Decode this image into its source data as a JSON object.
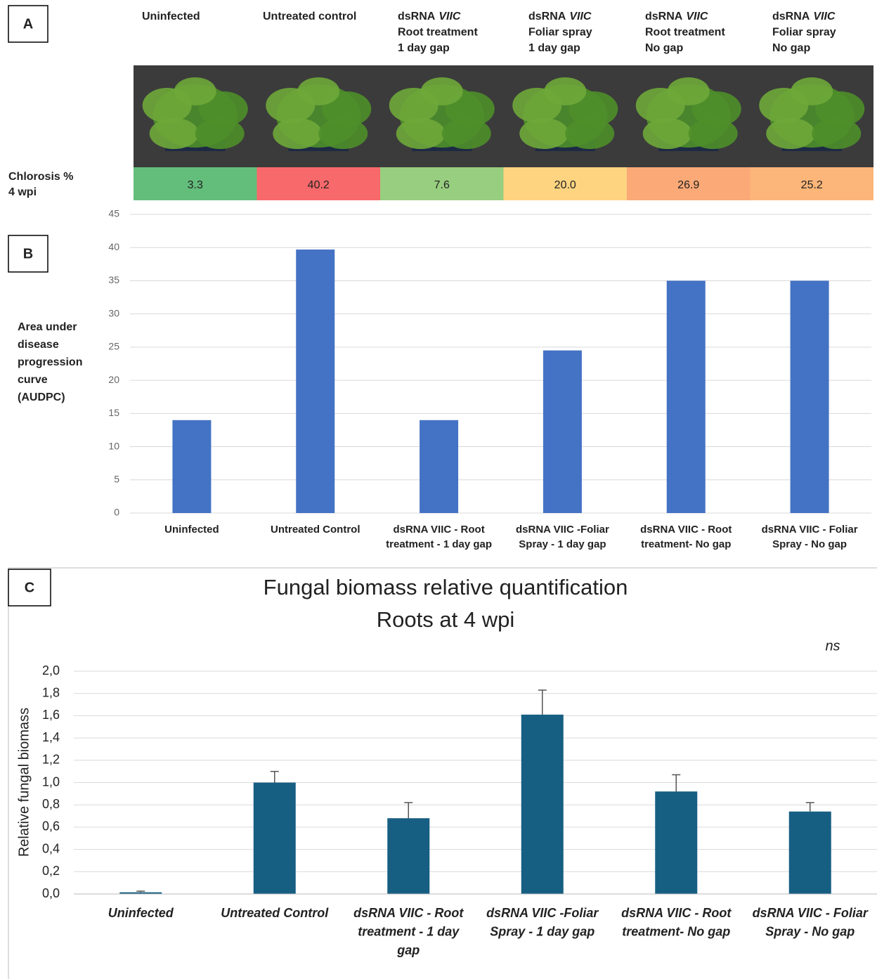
{
  "panel_a": {
    "label": "A",
    "columns": [
      {
        "lines": [
          [
            "Uninfected"
          ]
        ]
      },
      {
        "lines": [
          [
            "Untreated control"
          ]
        ]
      },
      {
        "lines": [
          [
            "dsRNA",
            {
              "italic": "VIIC"
            }
          ],
          [
            "Root treatment"
          ],
          [
            "1 day gap"
          ]
        ]
      },
      {
        "lines": [
          [
            "dsRNA",
            {
              "italic": "VIIC"
            }
          ],
          [
            "Foliar spray"
          ],
          [
            "1 day gap"
          ]
        ]
      },
      {
        "lines": [
          [
            "dsRNA",
            {
              "italic": "VIIC"
            }
          ],
          [
            "Root treatment"
          ],
          [
            "No gap"
          ]
        ]
      },
      {
        "lines": [
          [
            "dsRNA",
            {
              "italic": "VIIC"
            }
          ],
          [
            "Foliar spray"
          ],
          [
            "No gap"
          ]
        ]
      }
    ],
    "row_label": [
      "Chlorosis %",
      "4 wpi"
    ],
    "values": [
      3.3,
      40.2,
      7.6,
      20.0,
      26.9,
      25.2
    ],
    "value_labels": [
      "3.3",
      "40.2",
      "7.6",
      "20.0",
      "26.9",
      "25.2"
    ],
    "colors": [
      "#63be7b",
      "#f8696b",
      "#98ce7f",
      "#fed480",
      "#fba977",
      "#fcb679"
    ]
  },
  "chart_data": [
    {
      "type": "bar",
      "panel_label": "B",
      "y_label": [
        "Area under",
        "disease",
        "progression",
        "curve",
        "(AUDPC)"
      ],
      "categories": [
        [
          "Uninfected"
        ],
        [
          "Untreated Control"
        ],
        [
          "dsRNA VIIC - Root",
          "treatment - 1 day gap"
        ],
        [
          "dsRNA VIIC -Foliar",
          "Spray - 1 day gap"
        ],
        [
          "dsRNA VIIC - Root",
          "treatment- No gap"
        ],
        [
          "dsRNA VIIC - Foliar",
          "Spray - No gap"
        ]
      ],
      "values": [
        14,
        39.7,
        14,
        24.5,
        35,
        35
      ],
      "color": "#4472c4",
      "ylim": [
        0,
        45
      ],
      "yticks": [
        0,
        5,
        10,
        15,
        20,
        25,
        30,
        35,
        40,
        45
      ],
      "grid": true
    },
    {
      "type": "bar",
      "panel_label": "C",
      "title": [
        "Fungal biomass relative quantification",
        "Roots at 4 wpi"
      ],
      "annotation": "ns",
      "y_label": [
        "Relative fungal biomass"
      ],
      "categories": [
        [
          "Uninfected"
        ],
        [
          "Untreated Control"
        ],
        [
          "dsRNA VIIC - Root",
          "treatment - 1 day",
          "gap"
        ],
        [
          "dsRNA VIIC -Foliar",
          "Spray - 1 day gap"
        ],
        [
          "dsRNA VIIC - Root",
          "treatment- No gap"
        ],
        [
          "dsRNA VIIC - Foliar",
          "Spray - No gap"
        ]
      ],
      "values": [
        0.015,
        1.0,
        0.68,
        1.61,
        0.92,
        0.74
      ],
      "errors": [
        0.01,
        0.1,
        0.14,
        0.22,
        0.15,
        0.08
      ],
      "color": "#175e83",
      "ylim": [
        0,
        2
      ],
      "yticks": [
        {
          "value": 0,
          "label": "0,0"
        },
        {
          "value": 0.2,
          "label": "0,2"
        },
        {
          "value": 0.4,
          "label": "0,4"
        },
        {
          "value": 0.6,
          "label": "0,6"
        },
        {
          "value": 0.8,
          "label": "0,8"
        },
        {
          "value": 1,
          "label": "1,0"
        },
        {
          "value": 1.2,
          "label": "1,2"
        },
        {
          "value": 1.4,
          "label": "1,4"
        },
        {
          "value": 1.6,
          "label": "1,6"
        },
        {
          "value": 1.8,
          "label": "1,8"
        },
        {
          "value": 2,
          "label": "2,0"
        }
      ],
      "grid": true
    }
  ]
}
